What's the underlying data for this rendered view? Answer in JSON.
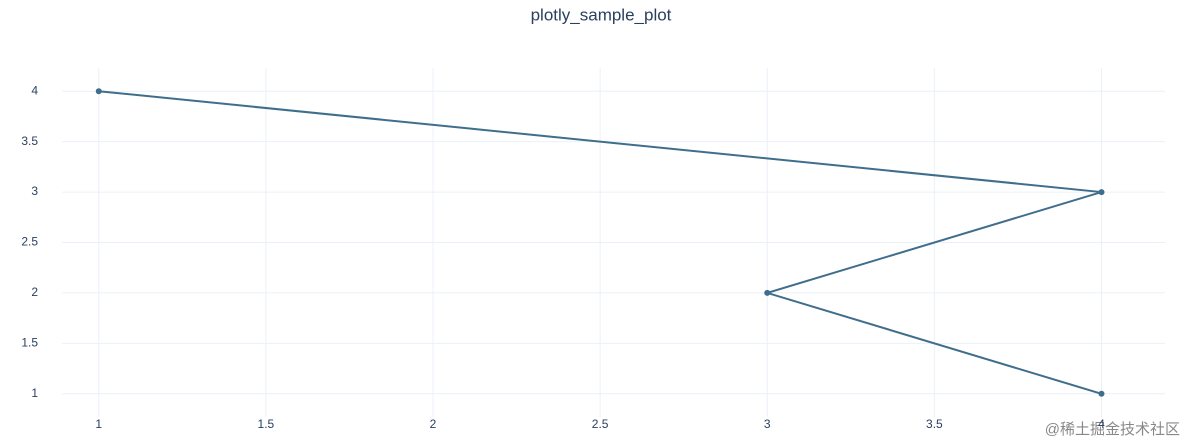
{
  "chart_data": {
    "type": "line",
    "title": "plotly_sample_plot",
    "x": [
      1,
      4,
      3,
      4
    ],
    "y": [
      4,
      3,
      2,
      1
    ],
    "color": "#3f6e8c",
    "markers": true,
    "xlim": [
      0.89,
      4.19
    ],
    "ylim": [
      0.77,
      4.23
    ],
    "xticks": [
      1,
      1.5,
      2,
      2.5,
      3,
      3.5,
      4
    ],
    "yticks": [
      1,
      1.5,
      2,
      2.5,
      3,
      3.5,
      4
    ],
    "grid": true,
    "watermark": "@稀土掘金技术社区"
  }
}
